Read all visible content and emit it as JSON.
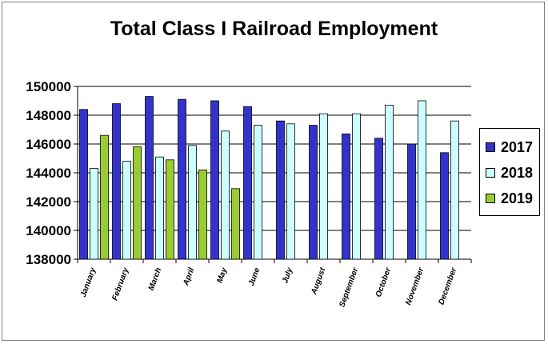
{
  "chart_data": {
    "type": "bar",
    "title": "Total Class I Railroad Employment",
    "xlabel": "",
    "ylabel": "",
    "ylim": [
      138000,
      150000
    ],
    "yticks": [
      "138000",
      "140000",
      "142000",
      "144000",
      "146000",
      "148000",
      "150000"
    ],
    "yticks_values": [
      138000,
      140000,
      142000,
      144000,
      146000,
      148000,
      150000
    ],
    "categories": [
      "January",
      "February",
      "March",
      "April",
      "May",
      "June",
      "July",
      "August",
      "September",
      "October",
      "November",
      "December"
    ],
    "grid": "horizontal",
    "legend_position": "right",
    "series": [
      {
        "name": "2017",
        "color": "#3333cc",
        "values": [
          148400,
          148800,
          149300,
          149100,
          149000,
          148600,
          147600,
          147300,
          146700,
          146400,
          146000,
          145400
        ]
      },
      {
        "name": "2018",
        "color": "#ccffff",
        "values": [
          144300,
          144800,
          145100,
          145900,
          146900,
          147300,
          147400,
          148100,
          148100,
          148700,
          149000,
          147600
        ]
      },
      {
        "name": "2019",
        "color": "#99cc33",
        "values": [
          146600,
          145800,
          144900,
          144200,
          142900,
          null,
          null,
          null,
          null,
          null,
          null,
          null
        ]
      }
    ]
  }
}
